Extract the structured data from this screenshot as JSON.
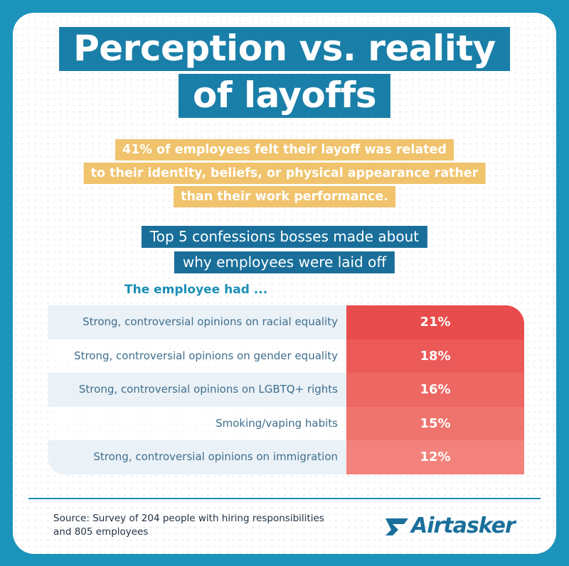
{
  "header": {
    "title": [
      "Perception vs. reality",
      "of layoffs"
    ],
    "highlight": [
      "41% of employees felt their layoff was related",
      "to their identity, beliefs, or physical appearance rather",
      "than their work performance."
    ],
    "subtitle": [
      "Top 5 confessions bosses made about",
      "why employees were laid off"
    ]
  },
  "table": {
    "caption": "The employee had ...",
    "rows": [
      [
        "Strong, controversial opinions on racial equality",
        "21%"
      ],
      [
        "Strong, controversial opinions on gender equality",
        "18%"
      ],
      [
        "Strong, controversial opinions on LGBTQ+ rights",
        "16%"
      ],
      [
        "Smoking/vaping habits",
        "15%"
      ],
      [
        "Strong, controversial opinions on immigration",
        "12%"
      ]
    ]
  },
  "footer": {
    "source": [
      "Source: Survey of 204 people with hiring responsibilities",
      "and 805 employees"
    ],
    "logo": "Airtasker"
  }
}
